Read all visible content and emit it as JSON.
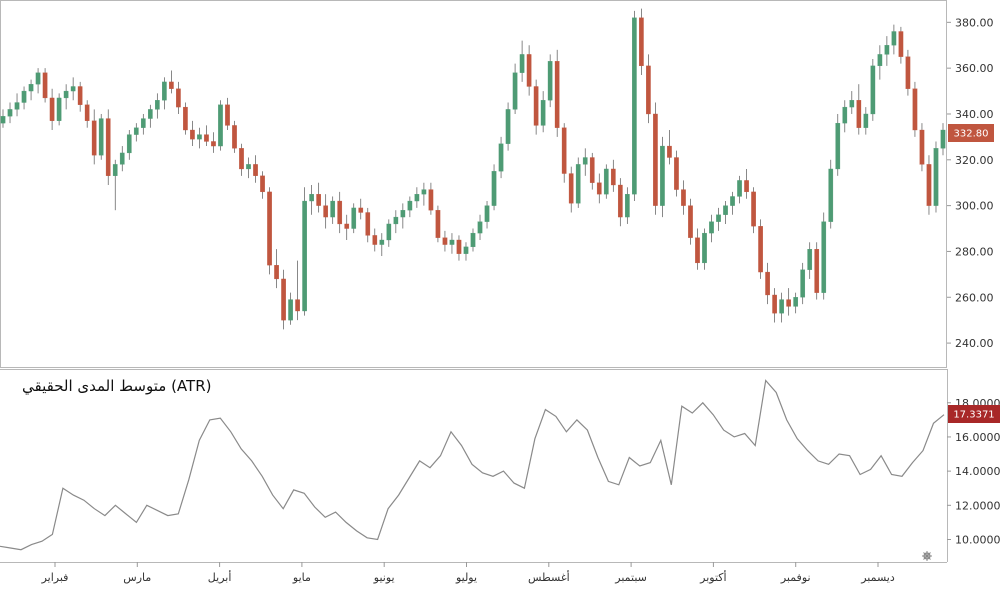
{
  "chart_data": [
    {
      "type": "candlestick",
      "ylim": [
        230,
        388
      ],
      "y_ticks": [
        "380.00",
        "360.00",
        "340.00",
        "320.00",
        "300.00",
        "280.00",
        "260.00",
        "240.00"
      ],
      "last_price_label": "332.80",
      "colors": {
        "up": "#4e9b74",
        "down": "#c0563f"
      },
      "candles": [
        {
          "o": 336,
          "h": 342,
          "l": 334,
          "c": 339
        },
        {
          "o": 339,
          "h": 345,
          "l": 336,
          "c": 342
        },
        {
          "o": 342,
          "h": 349,
          "l": 339,
          "c": 345
        },
        {
          "o": 345,
          "h": 352,
          "l": 342,
          "c": 350
        },
        {
          "o": 350,
          "h": 355,
          "l": 346,
          "c": 353
        },
        {
          "o": 353,
          "h": 360,
          "l": 349,
          "c": 358
        },
        {
          "o": 358,
          "h": 360,
          "l": 345,
          "c": 347
        },
        {
          "o": 347,
          "h": 351,
          "l": 333,
          "c": 337
        },
        {
          "o": 337,
          "h": 349,
          "l": 335,
          "c": 347
        },
        {
          "o": 347,
          "h": 353,
          "l": 342,
          "c": 350
        },
        {
          "o": 350,
          "h": 356,
          "l": 346,
          "c": 352
        },
        {
          "o": 352,
          "h": 354,
          "l": 341,
          "c": 344
        },
        {
          "o": 344,
          "h": 346,
          "l": 334,
          "c": 337
        },
        {
          "o": 337,
          "h": 342,
          "l": 318,
          "c": 322
        },
        {
          "o": 322,
          "h": 340,
          "l": 320,
          "c": 338
        },
        {
          "o": 338,
          "h": 342,
          "l": 309,
          "c": 313
        },
        {
          "o": 313,
          "h": 320,
          "l": 298,
          "c": 318
        },
        {
          "o": 318,
          "h": 326,
          "l": 315,
          "c": 323
        },
        {
          "o": 323,
          "h": 333,
          "l": 320,
          "c": 331
        },
        {
          "o": 331,
          "h": 336,
          "l": 328,
          "c": 334
        },
        {
          "o": 334,
          "h": 340,
          "l": 331,
          "c": 338
        },
        {
          "o": 338,
          "h": 344,
          "l": 334,
          "c": 342
        },
        {
          "o": 342,
          "h": 349,
          "l": 338,
          "c": 346
        },
        {
          "o": 346,
          "h": 356,
          "l": 342,
          "c": 354
        },
        {
          "o": 354,
          "h": 359,
          "l": 349,
          "c": 351
        },
        {
          "o": 351,
          "h": 354,
          "l": 340,
          "c": 343
        },
        {
          "o": 343,
          "h": 345,
          "l": 331,
          "c": 333
        },
        {
          "o": 333,
          "h": 337,
          "l": 326,
          "c": 329
        },
        {
          "o": 329,
          "h": 334,
          "l": 325,
          "c": 331
        },
        {
          "o": 331,
          "h": 335,
          "l": 326,
          "c": 328
        },
        {
          "o": 328,
          "h": 332,
          "l": 323,
          "c": 326
        },
        {
          "o": 326,
          "h": 346,
          "l": 324,
          "c": 344
        },
        {
          "o": 344,
          "h": 347,
          "l": 333,
          "c": 335
        },
        {
          "o": 335,
          "h": 337,
          "l": 323,
          "c": 325
        },
        {
          "o": 325,
          "h": 327,
          "l": 313,
          "c": 316
        },
        {
          "o": 316,
          "h": 321,
          "l": 312,
          "c": 318
        },
        {
          "o": 318,
          "h": 322,
          "l": 310,
          "c": 313
        },
        {
          "o": 313,
          "h": 315,
          "l": 303,
          "c": 306
        },
        {
          "o": 306,
          "h": 308,
          "l": 270,
          "c": 274
        },
        {
          "o": 274,
          "h": 281,
          "l": 264,
          "c": 268
        },
        {
          "o": 268,
          "h": 272,
          "l": 246,
          "c": 250
        },
        {
          "o": 250,
          "h": 262,
          "l": 248,
          "c": 259
        },
        {
          "o": 259,
          "h": 276,
          "l": 250,
          "c": 254
        },
        {
          "o": 254,
          "h": 308,
          "l": 252,
          "c": 302
        },
        {
          "o": 302,
          "h": 309,
          "l": 296,
          "c": 305
        },
        {
          "o": 305,
          "h": 310,
          "l": 297,
          "c": 300
        },
        {
          "o": 300,
          "h": 305,
          "l": 290,
          "c": 295
        },
        {
          "o": 295,
          "h": 304,
          "l": 292,
          "c": 302
        },
        {
          "o": 302,
          "h": 306,
          "l": 288,
          "c": 292
        },
        {
          "o": 292,
          "h": 296,
          "l": 285,
          "c": 290
        },
        {
          "o": 290,
          "h": 301,
          "l": 288,
          "c": 299
        },
        {
          "o": 299,
          "h": 303,
          "l": 294,
          "c": 297
        },
        {
          "o": 297,
          "h": 299,
          "l": 284,
          "c": 287
        },
        {
          "o": 287,
          "h": 290,
          "l": 280,
          "c": 283
        },
        {
          "o": 283,
          "h": 288,
          "l": 278,
          "c": 285
        },
        {
          "o": 285,
          "h": 294,
          "l": 282,
          "c": 292
        },
        {
          "o": 292,
          "h": 298,
          "l": 288,
          "c": 295
        },
        {
          "o": 295,
          "h": 301,
          "l": 290,
          "c": 298
        },
        {
          "o": 298,
          "h": 304,
          "l": 295,
          "c": 302
        },
        {
          "o": 302,
          "h": 308,
          "l": 299,
          "c": 305
        },
        {
          "o": 305,
          "h": 310,
          "l": 300,
          "c": 307
        },
        {
          "o": 307,
          "h": 310,
          "l": 296,
          "c": 298
        },
        {
          "o": 298,
          "h": 300,
          "l": 284,
          "c": 286
        },
        {
          "o": 286,
          "h": 289,
          "l": 280,
          "c": 283
        },
        {
          "o": 283,
          "h": 288,
          "l": 279,
          "c": 285
        },
        {
          "o": 285,
          "h": 287,
          "l": 276,
          "c": 279
        },
        {
          "o": 279,
          "h": 284,
          "l": 276,
          "c": 282
        },
        {
          "o": 282,
          "h": 290,
          "l": 280,
          "c": 288
        },
        {
          "o": 288,
          "h": 296,
          "l": 285,
          "c": 293
        },
        {
          "o": 293,
          "h": 302,
          "l": 290,
          "c": 300
        },
        {
          "o": 300,
          "h": 318,
          "l": 298,
          "c": 315
        },
        {
          "o": 315,
          "h": 330,
          "l": 312,
          "c": 327
        },
        {
          "o": 327,
          "h": 345,
          "l": 324,
          "c": 342
        },
        {
          "o": 342,
          "h": 362,
          "l": 340,
          "c": 358
        },
        {
          "o": 358,
          "h": 372,
          "l": 354,
          "c": 366
        },
        {
          "o": 366,
          "h": 370,
          "l": 348,
          "c": 352
        },
        {
          "o": 352,
          "h": 355,
          "l": 331,
          "c": 335
        },
        {
          "o": 335,
          "h": 350,
          "l": 332,
          "c": 346
        },
        {
          "o": 346,
          "h": 366,
          "l": 343,
          "c": 363
        },
        {
          "o": 363,
          "h": 368,
          "l": 330,
          "c": 334
        },
        {
          "o": 334,
          "h": 336,
          "l": 310,
          "c": 314
        },
        {
          "o": 314,
          "h": 317,
          "l": 297,
          "c": 301
        },
        {
          "o": 301,
          "h": 321,
          "l": 299,
          "c": 318
        },
        {
          "o": 318,
          "h": 325,
          "l": 313,
          "c": 321
        },
        {
          "o": 321,
          "h": 323,
          "l": 307,
          "c": 310
        },
        {
          "o": 310,
          "h": 314,
          "l": 301,
          "c": 305
        },
        {
          "o": 305,
          "h": 318,
          "l": 303,
          "c": 316
        },
        {
          "o": 316,
          "h": 320,
          "l": 306,
          "c": 309
        },
        {
          "o": 309,
          "h": 312,
          "l": 291,
          "c": 295
        },
        {
          "o": 295,
          "h": 308,
          "l": 292,
          "c": 305
        },
        {
          "o": 305,
          "h": 385,
          "l": 302,
          "c": 382
        },
        {
          "o": 382,
          "h": 386,
          "l": 357,
          "c": 361
        },
        {
          "o": 361,
          "h": 366,
          "l": 336,
          "c": 340
        },
        {
          "o": 340,
          "h": 345,
          "l": 296,
          "c": 300
        },
        {
          "o": 300,
          "h": 330,
          "l": 295,
          "c": 326
        },
        {
          "o": 326,
          "h": 333,
          "l": 318,
          "c": 321
        },
        {
          "o": 321,
          "h": 324,
          "l": 304,
          "c": 307
        },
        {
          "o": 307,
          "h": 311,
          "l": 296,
          "c": 300
        },
        {
          "o": 300,
          "h": 303,
          "l": 283,
          "c": 286
        },
        {
          "o": 286,
          "h": 290,
          "l": 272,
          "c": 275
        },
        {
          "o": 275,
          "h": 290,
          "l": 272,
          "c": 288
        },
        {
          "o": 288,
          "h": 296,
          "l": 284,
          "c": 293
        },
        {
          "o": 293,
          "h": 299,
          "l": 289,
          "c": 296
        },
        {
          "o": 296,
          "h": 302,
          "l": 292,
          "c": 300
        },
        {
          "o": 300,
          "h": 306,
          "l": 296,
          "c": 304
        },
        {
          "o": 304,
          "h": 313,
          "l": 301,
          "c": 311
        },
        {
          "o": 311,
          "h": 316,
          "l": 303,
          "c": 306
        },
        {
          "o": 306,
          "h": 308,
          "l": 288,
          "c": 291
        },
        {
          "o": 291,
          "h": 294,
          "l": 268,
          "c": 271
        },
        {
          "o": 271,
          "h": 275,
          "l": 257,
          "c": 261
        },
        {
          "o": 261,
          "h": 264,
          "l": 249,
          "c": 253
        },
        {
          "o": 253,
          "h": 262,
          "l": 249,
          "c": 259
        },
        {
          "o": 259,
          "h": 264,
          "l": 252,
          "c": 256
        },
        {
          "o": 256,
          "h": 262,
          "l": 253,
          "c": 260
        },
        {
          "o": 260,
          "h": 275,
          "l": 257,
          "c": 272
        },
        {
          "o": 272,
          "h": 284,
          "l": 268,
          "c": 281
        },
        {
          "o": 281,
          "h": 284,
          "l": 259,
          "c": 262
        },
        {
          "o": 262,
          "h": 297,
          "l": 259,
          "c": 293
        },
        {
          "o": 293,
          "h": 320,
          "l": 290,
          "c": 316
        },
        {
          "o": 316,
          "h": 340,
          "l": 313,
          "c": 336
        },
        {
          "o": 336,
          "h": 346,
          "l": 332,
          "c": 343
        },
        {
          "o": 343,
          "h": 350,
          "l": 340,
          "c": 346
        },
        {
          "o": 346,
          "h": 353,
          "l": 331,
          "c": 334
        },
        {
          "o": 334,
          "h": 343,
          "l": 331,
          "c": 340
        },
        {
          "o": 340,
          "h": 364,
          "l": 337,
          "c": 361
        },
        {
          "o": 361,
          "h": 370,
          "l": 355,
          "c": 366
        },
        {
          "o": 366,
          "h": 374,
          "l": 361,
          "c": 370
        },
        {
          "o": 370,
          "h": 379,
          "l": 366,
          "c": 376
        },
        {
          "o": 376,
          "h": 378,
          "l": 362,
          "c": 365
        },
        {
          "o": 365,
          "h": 368,
          "l": 348,
          "c": 351
        },
        {
          "o": 351,
          "h": 354,
          "l": 330,
          "c": 333
        },
        {
          "o": 333,
          "h": 336,
          "l": 315,
          "c": 318
        },
        {
          "o": 318,
          "h": 322,
          "l": 296,
          "c": 300
        },
        {
          "o": 300,
          "h": 328,
          "l": 297,
          "c": 325
        },
        {
          "o": 325,
          "h": 336,
          "l": 322,
          "c": 333
        }
      ]
    },
    {
      "type": "line",
      "title": "متوسط المدى الحقيقي (ATR)",
      "ylim": [
        8.8,
        19.8
      ],
      "y_ticks": [
        "18.0000",
        "16.0000",
        "14.0000",
        "12.0000",
        "10.0000"
      ],
      "last_value_label": "17.3371",
      "x_labels": [
        "فبراير",
        "مارس",
        "أبريل",
        "مايو",
        "يونيو",
        "يوليو",
        "أغسطس",
        "سبتمبر",
        "أكتوبر",
        "نوفمبر",
        "ديسمبر"
      ],
      "series": [
        {
          "values": [
            9.6,
            9.5,
            9.4,
            9.7,
            9.9,
            10.3,
            13.0,
            12.6,
            12.3,
            11.8,
            11.4,
            12.0,
            11.5,
            11.0,
            12.0,
            11.7,
            11.4,
            11.5,
            13.5,
            15.8,
            17.0,
            17.1,
            16.3,
            15.3,
            14.6,
            13.7,
            12.6,
            11.8,
            12.9,
            12.7,
            11.9,
            11.3,
            11.6,
            11.0,
            10.5,
            10.1,
            10.0,
            11.8,
            12.6,
            13.6,
            14.6,
            14.2,
            14.9,
            16.3,
            15.5,
            14.4,
            13.9,
            13.7,
            14.0,
            13.3,
            13.0,
            15.9,
            17.6,
            17.2,
            16.3,
            17.0,
            16.4,
            14.8,
            13.4,
            13.2,
            14.8,
            14.3,
            14.5,
            15.8,
            13.2,
            17.8,
            17.4,
            18.0,
            17.3,
            16.4,
            16.0,
            16.2,
            15.5,
            19.3,
            18.6,
            17.0,
            15.9,
            15.2,
            14.6,
            14.4,
            15.0,
            14.9,
            13.8,
            14.1,
            14.9,
            13.8,
            13.7,
            14.5,
            15.2,
            16.8,
            17.3
          ]
        }
      ]
    }
  ]
}
